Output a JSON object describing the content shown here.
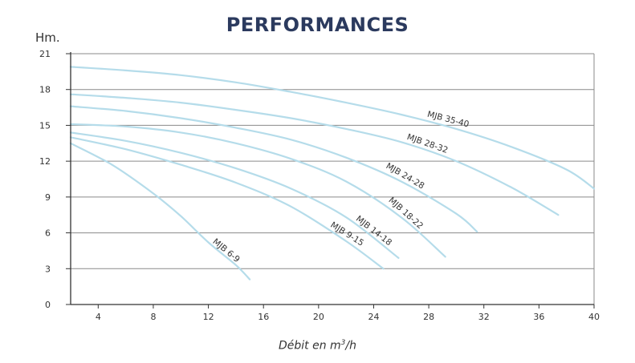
{
  "colors": {
    "title": "#2b3a5e",
    "curve": "#b5dcea",
    "axis": "#333333",
    "grid": "#8a8a8a",
    "text": "#333333"
  },
  "chart_data": {
    "type": "line",
    "title": "PERFORMANCES",
    "ylabel": "Hm.",
    "xlabel_prefix": "Débit en m",
    "xlabel_sup": "3",
    "xlabel_suffix": "/h",
    "xlim": [
      2,
      40
    ],
    "ylim": [
      0,
      21
    ],
    "xticks": [
      4,
      8,
      12,
      16,
      20,
      24,
      28,
      32,
      36,
      40
    ],
    "yticks": [
      0,
      3,
      6,
      9,
      12,
      15,
      18,
      21
    ],
    "grid": "horizontal",
    "series": [
      {
        "name": "MJB 6-9",
        "points": [
          [
            2,
            13.5
          ],
          [
            5,
            11.7
          ],
          [
            8,
            9.3
          ],
          [
            10,
            7.4
          ],
          [
            12,
            5.2
          ],
          [
            14,
            3.3
          ],
          [
            15,
            2.1
          ]
        ]
      },
      {
        "name": "MJB 9-15",
        "points": [
          [
            2,
            14.0
          ],
          [
            6,
            13.0
          ],
          [
            10,
            11.7
          ],
          [
            14,
            10.2
          ],
          [
            18,
            8.2
          ],
          [
            22,
            5.3
          ],
          [
            24.7,
            3.0
          ]
        ]
      },
      {
        "name": "MJB 14-18",
        "points": [
          [
            2,
            14.4
          ],
          [
            6,
            13.7
          ],
          [
            10,
            12.7
          ],
          [
            14,
            11.4
          ],
          [
            18,
            9.7
          ],
          [
            22,
            7.3
          ],
          [
            25.8,
            3.9
          ]
        ]
      },
      {
        "name": "MJB 18-22",
        "points": [
          [
            2,
            15.1
          ],
          [
            6,
            14.9
          ],
          [
            10,
            14.4
          ],
          [
            14,
            13.5
          ],
          [
            18,
            12.2
          ],
          [
            22,
            10.3
          ],
          [
            26,
            7.3
          ],
          [
            29.2,
            4.0
          ]
        ]
      },
      {
        "name": "MJB 24-28",
        "points": [
          [
            2,
            16.6
          ],
          [
            6,
            16.2
          ],
          [
            10,
            15.6
          ],
          [
            14,
            14.8
          ],
          [
            18,
            13.8
          ],
          [
            22,
            12.3
          ],
          [
            26,
            10.3
          ],
          [
            30,
            7.6
          ],
          [
            31.5,
            6.1
          ]
        ]
      },
      {
        "name": "MJB 28-32",
        "points": [
          [
            2,
            17.6
          ],
          [
            6,
            17.3
          ],
          [
            10,
            16.9
          ],
          [
            14,
            16.3
          ],
          [
            18,
            15.6
          ],
          [
            22,
            14.7
          ],
          [
            26,
            13.6
          ],
          [
            30,
            12.0
          ],
          [
            34,
            9.8
          ],
          [
            37.4,
            7.5
          ]
        ]
      },
      {
        "name": "MJB 35-40",
        "points": [
          [
            2,
            19.9
          ],
          [
            6,
            19.6
          ],
          [
            10,
            19.2
          ],
          [
            14,
            18.6
          ],
          [
            18,
            17.8
          ],
          [
            22,
            16.9
          ],
          [
            26,
            15.9
          ],
          [
            30,
            14.7
          ],
          [
            34,
            13.2
          ],
          [
            38,
            11.3
          ],
          [
            40,
            9.7
          ]
        ]
      }
    ]
  }
}
